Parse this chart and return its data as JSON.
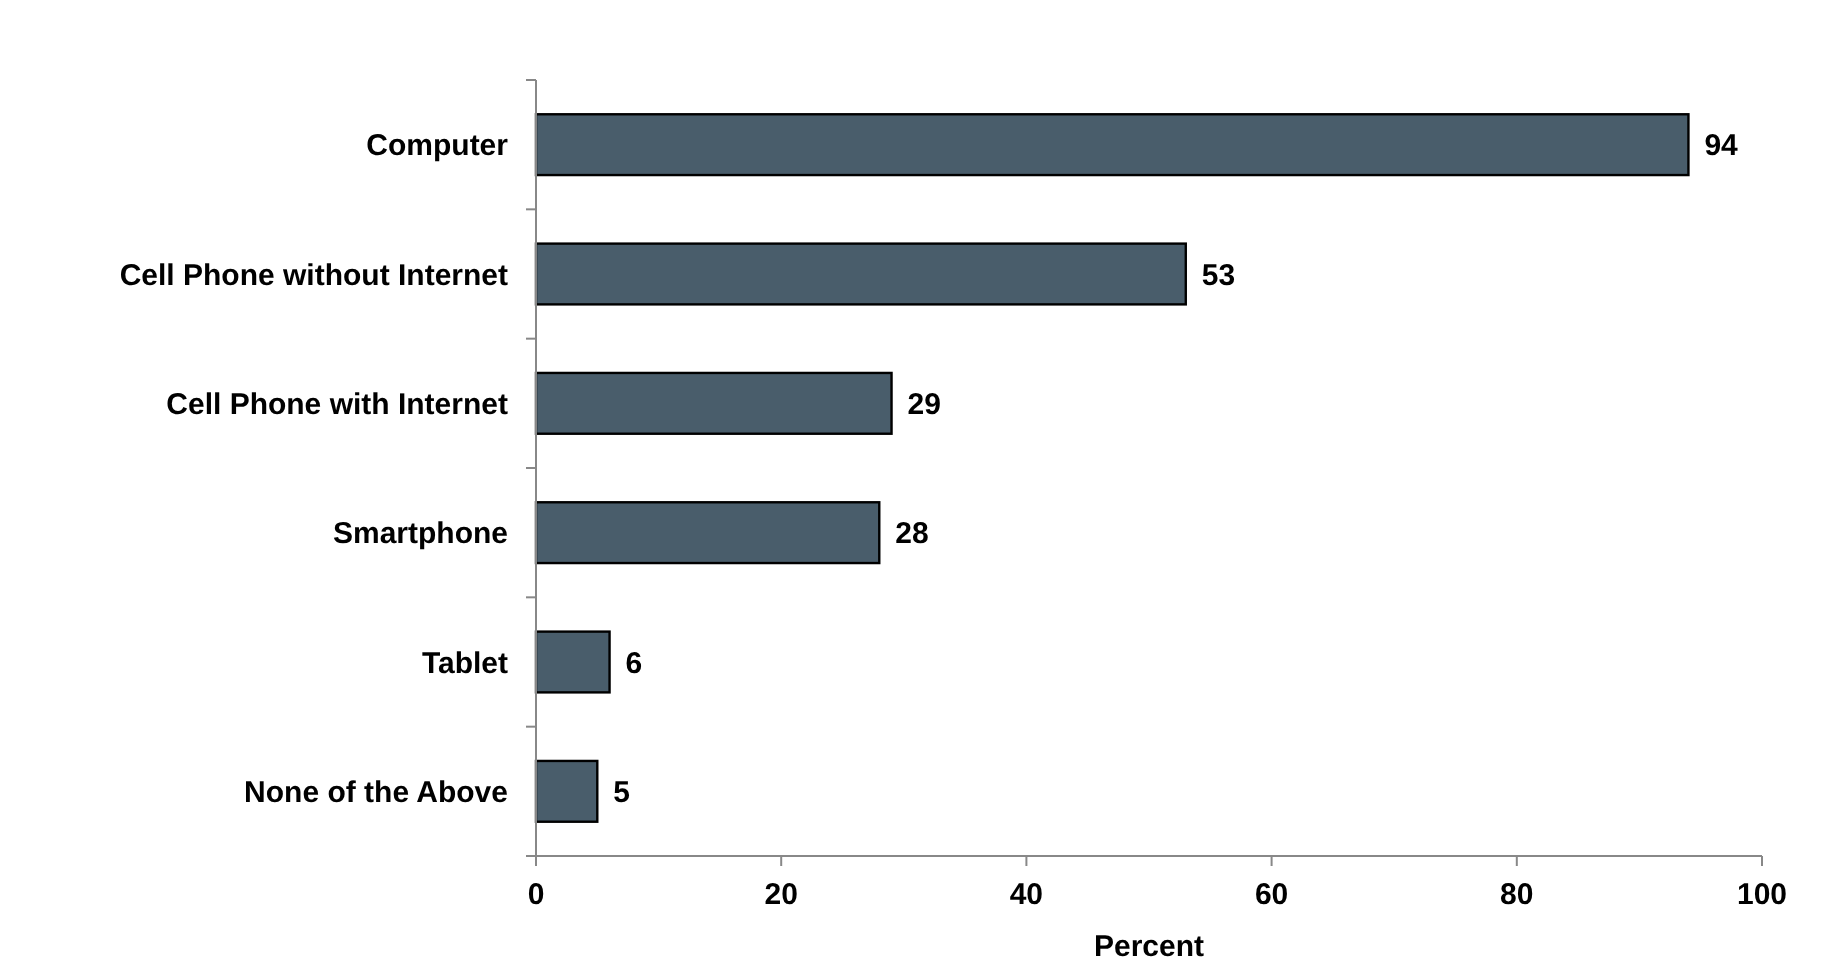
{
  "chart_data": {
    "type": "bar",
    "orientation": "horizontal",
    "xlabel": "Percent",
    "categories": [
      "Computer",
      "Cell Phone without Internet",
      "Cell Phone with Internet",
      "Smartphone",
      "Tablet",
      "None of the Above"
    ],
    "values": [
      94,
      53,
      29,
      28,
      6,
      5
    ],
    "color": "#495d6b",
    "data_labels": true,
    "xlim": [
      0,
      100
    ],
    "xticks": [
      0,
      20,
      40,
      60,
      80,
      100
    ],
    "grid": false
  }
}
